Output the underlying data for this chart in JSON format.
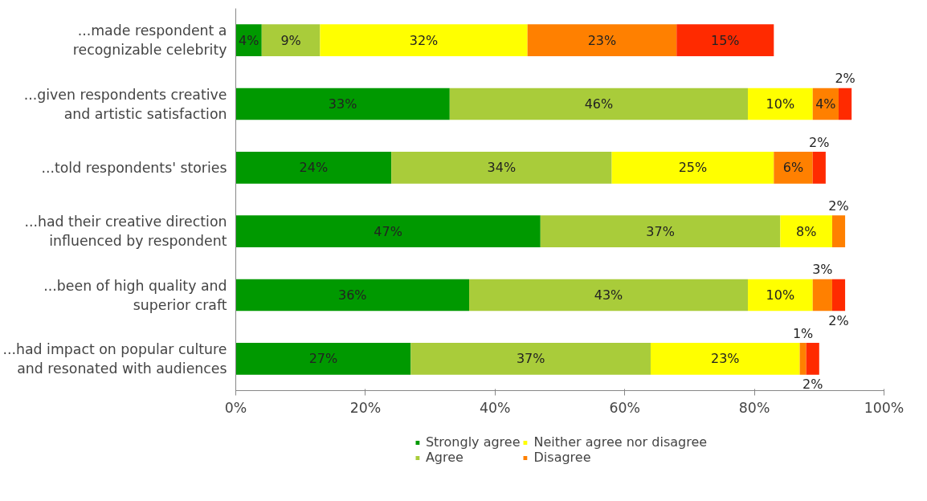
{
  "chart_data": {
    "type": "bar",
    "orientation": "horizontal",
    "stacked": true,
    "categories": [
      "...made respondent a recognizable celebrity",
      "...given respondents creative and artistic satisfaction",
      "...told respondents' stories",
      "...had their creative direction influenced by respondent",
      "...been of high quality and superior craft",
      "...had impact on popular culture and resonated with audiences"
    ],
    "series": [
      {
        "name": "Strongly agree",
        "color": "#009900",
        "values": [
          4,
          33,
          24,
          47,
          36,
          27
        ],
        "value_labels": [
          "4%",
          "33%",
          "24%",
          "47%",
          "36%",
          "27%"
        ]
      },
      {
        "name": "Agree",
        "color": "#a9cc3a",
        "values": [
          9,
          46,
          34,
          37,
          43,
          37
        ],
        "value_labels": [
          "9%",
          "46%",
          "34%",
          "37%",
          "43%",
          "37%"
        ]
      },
      {
        "name": "Neither agree nor disagree",
        "color": "#ffff00",
        "values": [
          32,
          10,
          25,
          8,
          10,
          23
        ],
        "value_labels": [
          "32%",
          "10%",
          "25%",
          "8%",
          "10%",
          "23%"
        ]
      },
      {
        "name": "Disagree",
        "color": "#ff8000",
        "values": [
          23,
          4,
          6,
          2,
          3,
          1
        ],
        "value_labels": [
          "23%",
          "4%",
          "6%",
          "2%",
          "3%",
          "1%"
        ]
      },
      {
        "color": "#ff2a00",
        "values": [
          15,
          2,
          2,
          null,
          2,
          2
        ],
        "value_labels": [
          "15%",
          "2%",
          "2%",
          null,
          "2%",
          "2%"
        ]
      }
    ],
    "xlim": [
      0,
      100
    ],
    "xticks": [
      {
        "value": 0,
        "label": "0%"
      },
      {
        "value": 20,
        "label": "20%"
      },
      {
        "value": 40,
        "label": "40%"
      },
      {
        "value": 60,
        "label": "60%"
      },
      {
        "value": 80,
        "label": "80%"
      },
      {
        "value": 100,
        "label": "100%"
      }
    ],
    "grid": false,
    "legend": "bottom"
  }
}
